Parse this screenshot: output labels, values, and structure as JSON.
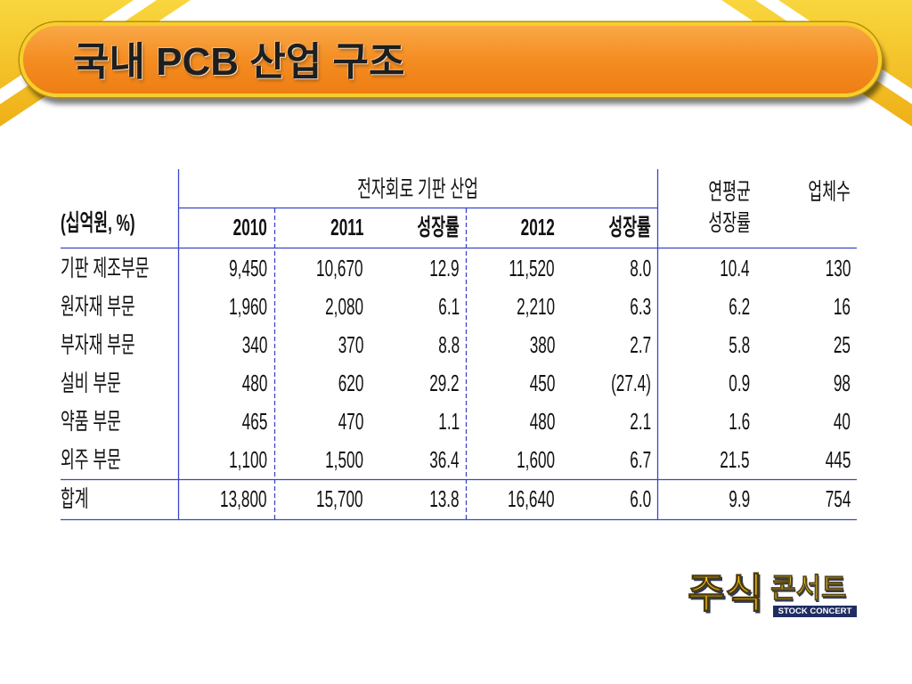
{
  "slide": {
    "title": "국내 PCB 산업 구조"
  },
  "table": {
    "unit_label": "(십억원, %)",
    "group_header": "전자회로 기판 산업",
    "year_headers": [
      "2010",
      "2011",
      "성장률",
      "2012",
      "성장률"
    ],
    "cagr_header": [
      "연평균",
      "성장률"
    ],
    "companies_header": "업체수",
    "rows": [
      {
        "label": "기판 제조부문",
        "values": [
          "9,450",
          "10,670",
          "12.9",
          "11,520",
          "8.0",
          "10.4",
          "130"
        ]
      },
      {
        "label": "원자재 부문",
        "values": [
          "1,960",
          "2,080",
          "6.1",
          "2,210",
          "6.3",
          "6.2",
          "16"
        ]
      },
      {
        "label": "부자재 부문",
        "values": [
          "340",
          "370",
          "8.8",
          "380",
          "2.7",
          "5.8",
          "25"
        ]
      },
      {
        "label": "설비 부문",
        "values": [
          "480",
          "620",
          "29.2",
          "450",
          "(27.4)",
          "0.9",
          "98"
        ]
      },
      {
        "label": "약품 부문",
        "values": [
          "465",
          "470",
          "1.1",
          "480",
          "2.1",
          "1.6",
          "40"
        ]
      },
      {
        "label": "외주 부문",
        "values": [
          "1,100",
          "1,500",
          "36.4",
          "1,600",
          "6.7",
          "21.5",
          "445"
        ]
      }
    ],
    "total": {
      "label": "합계",
      "values": [
        "13,800",
        "15,700",
        "13.8",
        "16,640",
        "6.0",
        "9.9",
        "754"
      ]
    }
  },
  "logo": {
    "main": "주식",
    "sub": "콘서트",
    "tagline": "STOCK CONCERT"
  },
  "colors": {
    "banner_orange": "#f48d22",
    "banner_border": "#f6cf2a",
    "corner_gold": "#f3be1c",
    "grid_blue": "#3a46c8",
    "logo_yellow": "#f7c61c",
    "logo_navy": "#1f2d62"
  }
}
